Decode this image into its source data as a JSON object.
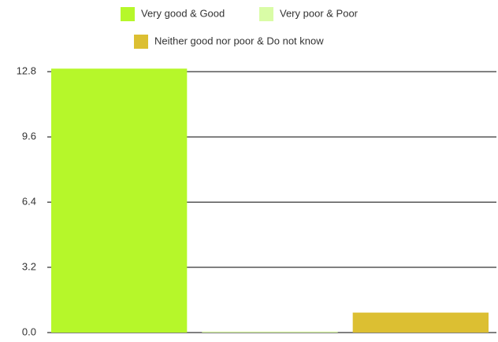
{
  "chart_data": {
    "type": "bar",
    "categories": [
      null
    ],
    "series": [
      {
        "name": "Very good & Good",
        "color": "#b6f72a",
        "values": [
          12.95
        ]
      },
      {
        "name": "Very poor & Poor",
        "color": "#d9fca6",
        "values": [
          0.05
        ]
      },
      {
        "name": "Neither good nor poor & Do not know",
        "color": "#dcbf32",
        "values": [
          0.98
        ]
      }
    ],
    "ylim": [
      0,
      13.0
    ],
    "yticks": [
      {
        "value": 0,
        "label": "0.0"
      },
      3.2,
      6.4,
      9.6,
      12.8
    ],
    "grid": true
  }
}
